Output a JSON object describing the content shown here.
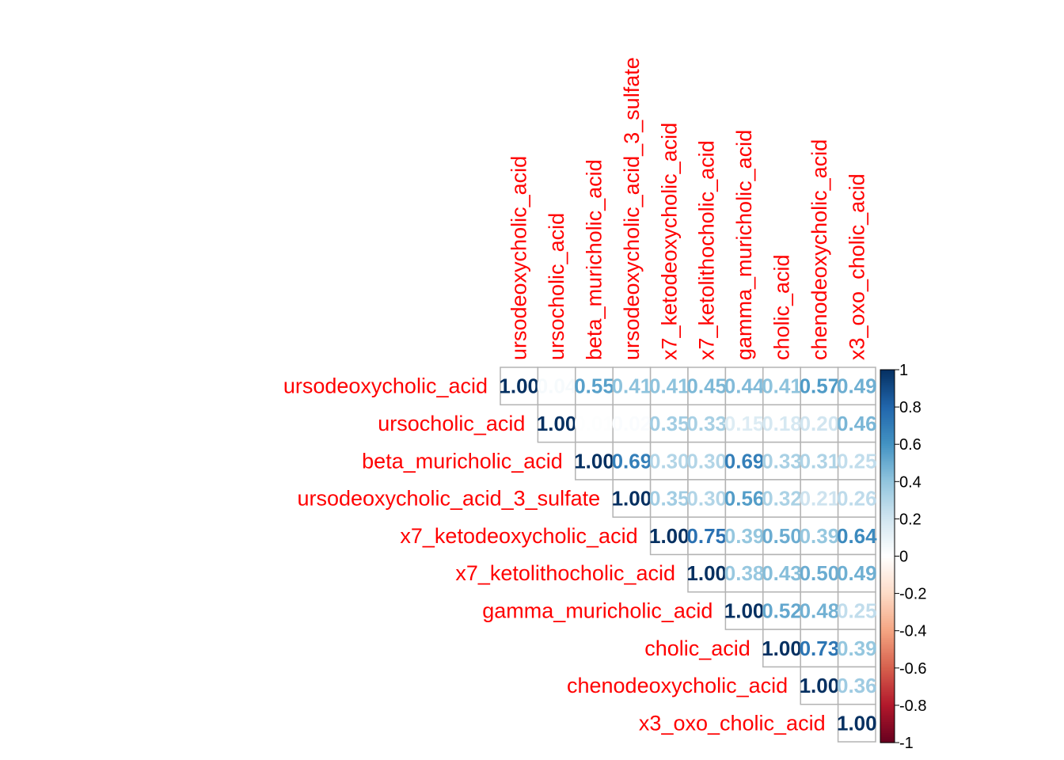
{
  "chart_data": {
    "type": "heatmap",
    "variables": [
      "ursodeoxycholic_acid",
      "ursocholic_acid",
      "beta_muricholic_acid",
      "ursodeoxycholic_acid_3_sulfate",
      "x7_ketodeoxycholic_acid",
      "x7_ketolithocholic_acid",
      "gamma_muricholic_acid",
      "cholic_acid",
      "chenodeoxycholic_acid",
      "x3_oxo_cholic_acid"
    ],
    "layout": "upper-triangle",
    "matrix": [
      [
        1.0,
        0.04,
        0.55,
        0.41,
        0.41,
        0.45,
        0.44,
        0.41,
        0.57,
        0.49
      ],
      [
        null,
        1.0,
        0.01,
        0.02,
        0.35,
        0.33,
        0.15,
        0.18,
        0.2,
        0.46
      ],
      [
        null,
        null,
        1.0,
        0.69,
        0.3,
        0.3,
        0.69,
        0.33,
        0.31,
        0.25
      ],
      [
        null,
        null,
        null,
        1.0,
        0.35,
        0.3,
        0.56,
        0.32,
        0.21,
        0.26
      ],
      [
        null,
        null,
        null,
        null,
        1.0,
        0.75,
        0.39,
        0.5,
        0.39,
        0.64
      ],
      [
        null,
        null,
        null,
        null,
        null,
        1.0,
        0.38,
        0.43,
        0.5,
        0.49
      ],
      [
        null,
        null,
        null,
        null,
        null,
        null,
        1.0,
        0.52,
        0.48,
        0.25
      ],
      [
        null,
        null,
        null,
        null,
        null,
        null,
        null,
        1.0,
        0.73,
        0.39
      ],
      [
        null,
        null,
        null,
        null,
        null,
        null,
        null,
        null,
        1.0,
        0.36
      ],
      [
        null,
        null,
        null,
        null,
        null,
        null,
        null,
        null,
        null,
        1.0
      ]
    ],
    "value_format": "2 decimals",
    "label_color": "#ff0000",
    "grid_color": "#b3b3b3",
    "colorbar": {
      "range": [
        -1,
        1
      ],
      "ticks": [
        "-1",
        "-0.8",
        "-0.6",
        "-0.4",
        "-0.2",
        "0",
        "0.2",
        "0.4",
        "0.6",
        "0.8",
        "1"
      ],
      "palette": [
        "#67001f",
        "#b2182b",
        "#d6604d",
        "#f4a582",
        "#fddbc7",
        "#ffffff",
        "#d1e5f0",
        "#92c5de",
        "#4393c3",
        "#2166ac",
        "#053061"
      ],
      "placement": "right"
    }
  }
}
